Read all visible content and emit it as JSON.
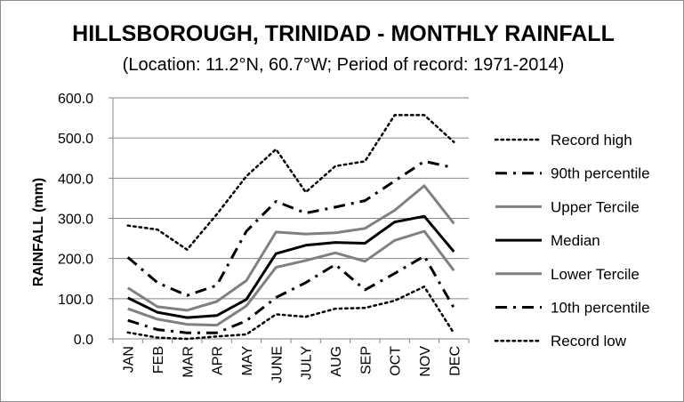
{
  "chart_data": {
    "type": "line",
    "title": "HILLSBOROUGH, TRINIDAD - MONTHLY RAINFALL",
    "subtitle": "(Location: 11.2°N, 60.7°W; Period of record: 1971-2014)",
    "ylabel": "RAINFALL (mm)",
    "xlabel": "",
    "ylim": [
      0,
      600
    ],
    "yticks": [
      "0.0",
      "100.0",
      "200.0",
      "300.0",
      "400.0",
      "500.0",
      "600.0"
    ],
    "grid": true,
    "legend": "right",
    "categories": [
      "JAN",
      "FEB",
      "MAR",
      "APR",
      "MAY",
      "JUNE",
      "JULY",
      "AUG",
      "SEP",
      "OCT",
      "NOV",
      "DEC"
    ],
    "series": [
      {
        "name": "Record high",
        "style": "dotted",
        "color": "#000000",
        "values": [
          282,
          272,
          222,
          310,
          405,
          472,
          365,
          430,
          442,
          557,
          557,
          490
        ]
      },
      {
        "name": "90th percentile",
        "style": "dashdot",
        "color": "#000000",
        "values": [
          203,
          140,
          108,
          133,
          268,
          342,
          313,
          328,
          344,
          393,
          442,
          426
        ]
      },
      {
        "name": "Upper Tercile",
        "style": "solid-gray",
        "color": "#808080",
        "values": [
          127,
          80,
          71,
          93,
          145,
          266,
          261,
          264,
          275,
          320,
          381,
          287
        ]
      },
      {
        "name": "Median",
        "style": "solid-black",
        "color": "#000000",
        "values": [
          102,
          66,
          53,
          58,
          98,
          212,
          233,
          240,
          238,
          291,
          305,
          217
        ]
      },
      {
        "name": "Lower Tercile",
        "style": "solid-gray",
        "color": "#808080",
        "values": [
          75,
          49,
          36,
          34,
          82,
          178,
          195,
          214,
          193,
          245,
          268,
          170
        ]
      },
      {
        "name": "10th percentile",
        "style": "dashdot",
        "color": "#000000",
        "values": [
          46,
          23,
          15,
          15,
          45,
          103,
          140,
          185,
          122,
          163,
          206,
          77
        ]
      },
      {
        "name": "Record low",
        "style": "dotted",
        "color": "#000000",
        "values": [
          16,
          3,
          0,
          6,
          11,
          61,
          55,
          75,
          77,
          95,
          130,
          14
        ]
      }
    ]
  }
}
